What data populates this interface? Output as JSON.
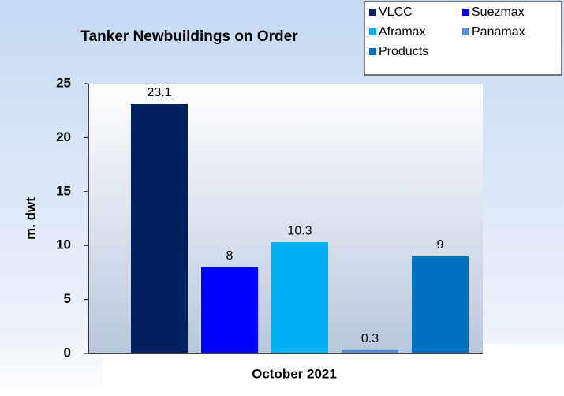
{
  "chart_data": {
    "type": "bar",
    "title": "Tanker Newbuildings on Order",
    "categories": [
      "October 2021"
    ],
    "x_label": "October 2021",
    "y_label": "m. dwt",
    "series": [
      {
        "name": "VLCC",
        "color": "#002060",
        "values": [
          23.1
        ]
      },
      {
        "name": "Suezmax",
        "color": "#0000ff",
        "values": [
          8
        ]
      },
      {
        "name": "Aframax",
        "color": "#00b0f0",
        "values": [
          10.3
        ]
      },
      {
        "name": "Panamax",
        "color": "#558ed5",
        "values": [
          0.3
        ]
      },
      {
        "name": "Products",
        "color": "#0070c0",
        "values": [
          9
        ]
      }
    ],
    "ylim": [
      0,
      25
    ],
    "yticks": [
      0,
      5,
      10,
      15,
      20,
      25
    ],
    "grid": false,
    "legend": "top-right"
  }
}
